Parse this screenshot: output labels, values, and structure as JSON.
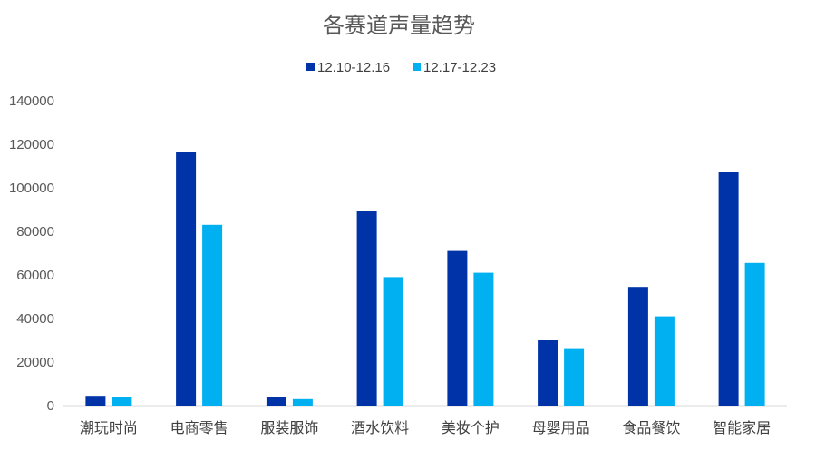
{
  "chart_data": {
    "type": "bar",
    "title": "各赛道声量趋势",
    "categories": [
      "潮玩时尚",
      "电商零售",
      "服装服饰",
      "酒水饮料",
      "美妆个护",
      "母婴用品",
      "食品餐饮",
      "智能家居"
    ],
    "series": [
      {
        "name": "12.10-12.16",
        "color": "#0033A8",
        "values": [
          4500,
          116500,
          4000,
          89500,
          71000,
          30000,
          54500,
          107500
        ]
      },
      {
        "name": "12.17-12.23",
        "color": "#00B0F0",
        "values": [
          3800,
          83000,
          3000,
          59000,
          61000,
          26000,
          41000,
          65500
        ]
      }
    ],
    "y_ticks": [
      "0",
      "20000",
      "40000",
      "60000",
      "80000",
      "100000",
      "120000",
      "140000"
    ],
    "ylim": [
      0,
      140000
    ],
    "grid": false,
    "legend_position": "top"
  }
}
